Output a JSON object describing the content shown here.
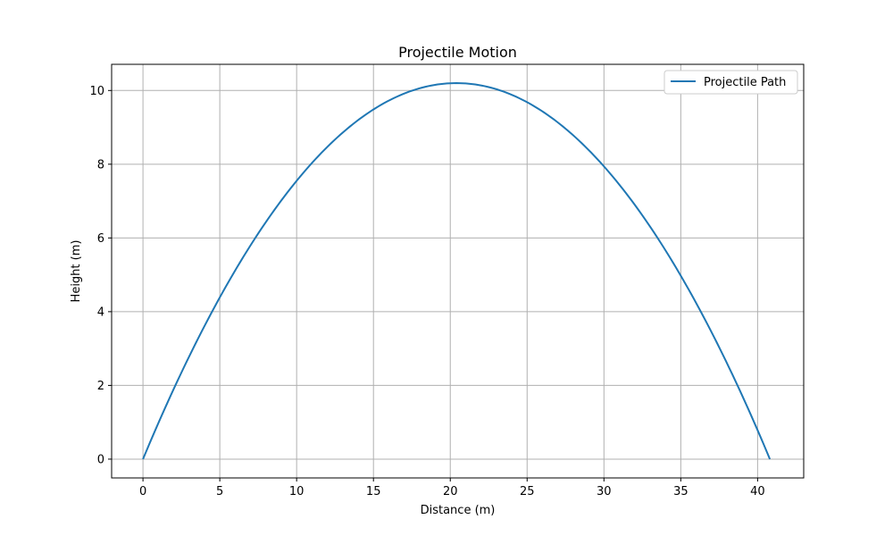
{
  "chart_data": {
    "type": "line",
    "title": "Projectile Motion",
    "xlabel": "Distance (m)",
    "ylabel": "Height (m)",
    "xlim": [
      -2.04,
      43.0
    ],
    "ylim": [
      -0.51,
      10.71
    ],
    "xticks": [
      0,
      5,
      10,
      15,
      20,
      25,
      30,
      35,
      40
    ],
    "yticks": [
      0,
      2,
      4,
      6,
      8,
      10
    ],
    "grid": true,
    "legend_position": "top-right",
    "series": [
      {
        "name": "Projectile Path",
        "color": "#1f77b4",
        "x": [
          0,
          2.55,
          5.1,
          7.65,
          10.2,
          12.75,
          15.3,
          17.85,
          20.4,
          22.95,
          25.5,
          28.05,
          30.6,
          33.15,
          35.7,
          38.25,
          40.8
        ],
        "y": [
          0,
          2.39,
          4.46,
          6.22,
          7.65,
          8.77,
          9.56,
          10.04,
          10.2,
          10.04,
          9.56,
          8.77,
          7.65,
          6.22,
          4.46,
          2.39,
          0
        ]
      }
    ]
  }
}
